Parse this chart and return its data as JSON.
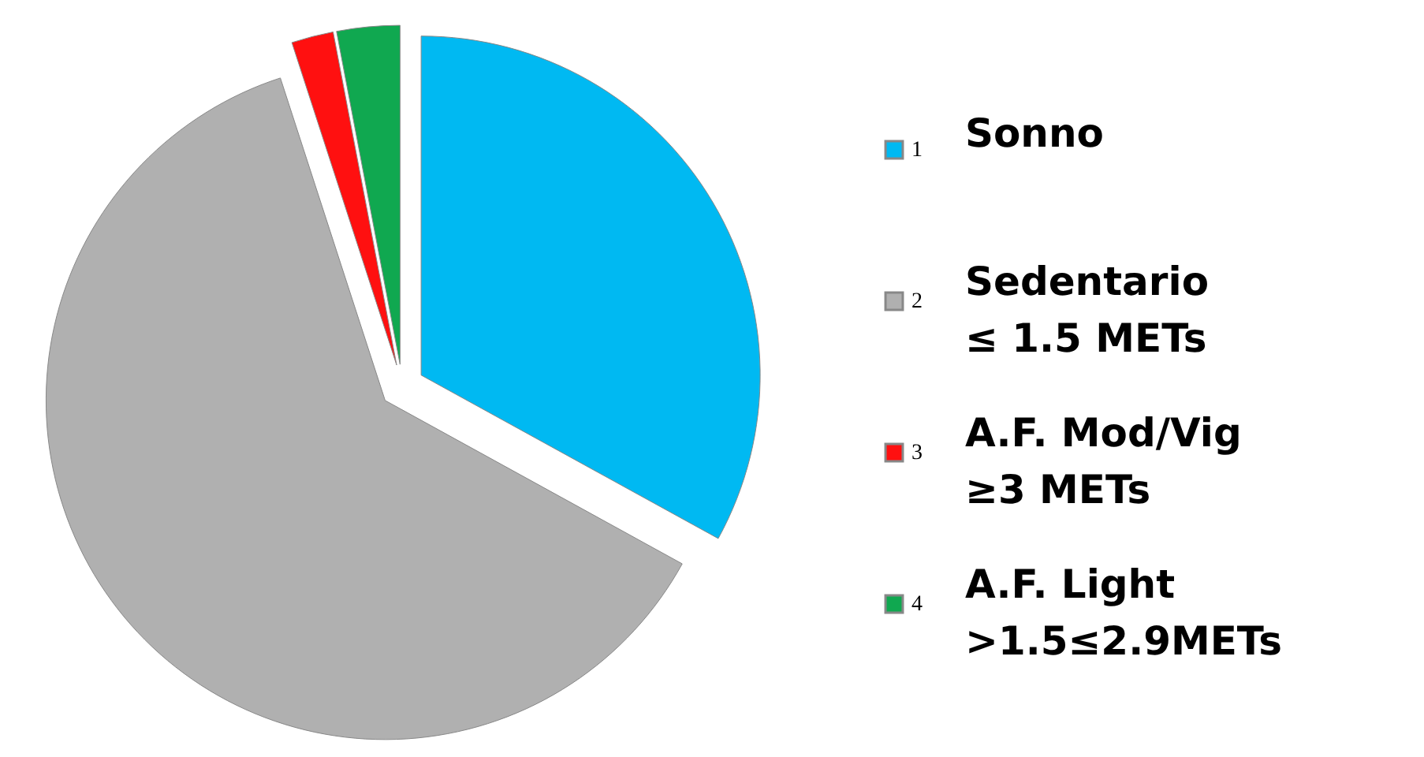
{
  "chart_data": {
    "type": "pie",
    "categories": [
      "1",
      "2",
      "3",
      "4"
    ],
    "values": [
      33,
      62,
      2,
      3
    ],
    "colors": [
      "#00b9f2",
      "#b0b0b0",
      "#ff1010",
      "#10a850"
    ],
    "legend": "right",
    "annotations": [
      "Sonno",
      "Sedentario\n≤ 1.5 METs",
      "A.F. Mod/Vig\n≥3 METs",
      "A.F. Light\n>1.5≤2.9METs"
    ]
  }
}
